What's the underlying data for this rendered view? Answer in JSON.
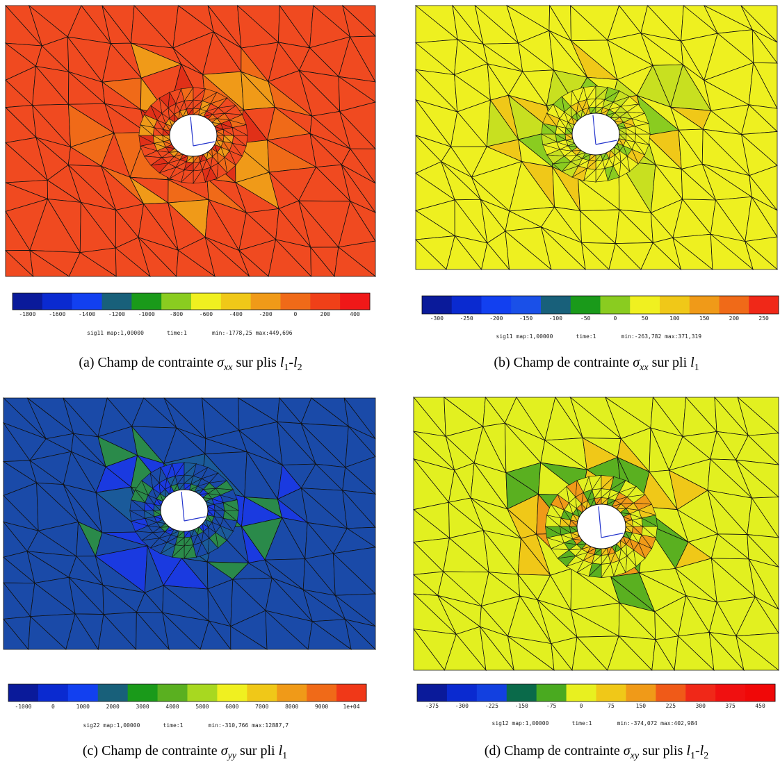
{
  "panels": [
    {
      "colorbar": {
        "colors": [
          "#0a1a9a",
          "#0a2ad0",
          "#1240f0",
          "#18607a",
          "#1a9a1a",
          "#8acc20",
          "#f0f020",
          "#f0c818",
          "#f09a18",
          "#f06a18",
          "#f04018",
          "#f01818"
        ],
        "ticks": [
          "-1800",
          "-1600",
          "-1400",
          "-1200",
          "-1000",
          "-800",
          "-600",
          "-400",
          "-200",
          "0",
          "200",
          "400"
        ]
      },
      "info": {
        "field": "sig11 map:1,00000",
        "time": "time:1",
        "range": "min:-1778,25 max:449,696"
      },
      "caption": [
        {
          "text": "(a) Champ de contrainte "
        },
        {
          "text": "σ",
          "sub": "xx"
        },
        {
          "text": " sur plis "
        },
        {
          "text": "l",
          "sub": "1"
        },
        {
          "text": "-"
        },
        {
          "text": "l",
          "sub": "2"
        }
      ]
    },
    {
      "colorbar": {
        "colors": [
          "#0a1a9a",
          "#0a2ad0",
          "#1240f0",
          "#1a50e8",
          "#18607a",
          "#1a9a1a",
          "#8acc20",
          "#f0f020",
          "#f0c818",
          "#f09a18",
          "#f06a18",
          "#f02818"
        ],
        "ticks": [
          "-300",
          "-250",
          "-200",
          "-150",
          "-100",
          "-50",
          "0",
          "50",
          "100",
          "150",
          "200",
          "250"
        ]
      },
      "info": {
        "field": "sig11 map:1,00000",
        "time": "time:1",
        "range": "min:-263,782 max:371,319"
      },
      "caption": [
        {
          "text": "(b) Champ de contrainte "
        },
        {
          "text": "σ",
          "sub": "xx"
        },
        {
          "text": " sur pli "
        },
        {
          "text": "l",
          "sub": "1"
        }
      ]
    },
    {
      "colorbar": {
        "colors": [
          "#0a1a9a",
          "#0a2ad0",
          "#1240f0",
          "#18607a",
          "#1a9a1a",
          "#5ab020",
          "#a8d820",
          "#f0f020",
          "#f0c818",
          "#f09a18",
          "#f06a18",
          "#f03818"
        ],
        "ticks": [
          "-1000",
          "0",
          "1000",
          "2000",
          "3000",
          "4000",
          "5000",
          "6000",
          "7000",
          "8000",
          "9000",
          "1e+04"
        ]
      },
      "info": {
        "field": "sig22 map:1,00000",
        "time": "time:1",
        "range": "min:-310,766 max:12887,7"
      },
      "caption": [
        {
          "text": "(c) Champ de contrainte "
        },
        {
          "text": "σ",
          "sub": "yy"
        },
        {
          "text": " sur pli "
        },
        {
          "text": "l",
          "sub": "1"
        }
      ]
    },
    {
      "colorbar": {
        "colors": [
          "#0a1a9a",
          "#0a2ad0",
          "#1240e0",
          "#0a6a4a",
          "#4aaa20",
          "#e8f020",
          "#f0c818",
          "#f09a18",
          "#f05a18",
          "#f02818",
          "#f01010",
          "#f00808"
        ],
        "ticks": [
          "-375",
          "-300",
          "-225",
          "-150",
          "-75",
          "0",
          "75",
          "150",
          "225",
          "300",
          "375",
          "450"
        ]
      },
      "info": {
        "field": "sig12 map:1,00000",
        "time": "time:1",
        "range": "min:-374,072 max:402,984"
      },
      "caption": [
        {
          "text": "(d) Champ de contrainte "
        },
        {
          "text": "σ",
          "sub": "xy"
        },
        {
          "text": " sur plis "
        },
        {
          "text": "l",
          "sub": "1"
        },
        {
          "text": "-"
        },
        {
          "text": "l",
          "sub": "2"
        }
      ]
    }
  ]
}
